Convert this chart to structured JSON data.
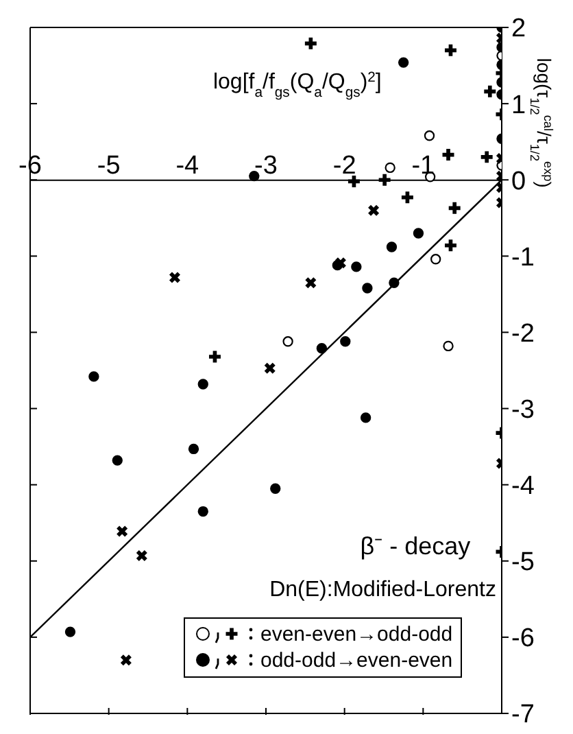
{
  "chart_data": {
    "type": "scatter",
    "title": "β⁻ - decay",
    "subtitle": "Dn(E):Modified-Lorentz",
    "xlabel": "log[f$_{a}$/f$_{gs}$(Q$_{a}$/Q$_{gs}$)$^{2}$]",
    "ylabel": "log(τ$_{1/2}$$^{cal}$/τ$_{1/2}$$^{exp}$)",
    "xlim": [
      -6,
      0
    ],
    "ylim": [
      -7,
      2
    ],
    "xticks": [
      -6,
      -5,
      -4,
      -3,
      -2,
      -1
    ],
    "yticks": [
      -7,
      -6,
      -5,
      -4,
      -3,
      -2,
      -1,
      0,
      1,
      2
    ],
    "legend": "bottom right",
    "series": [
      {
        "color": "#ffffff",
        "marker": "circle",
        "x": [
          -0.92,
          -1.42,
          -0.91,
          -0.84,
          -2.72,
          -0.68,
          0,
          0
        ],
        "values": [
          0.58,
          0.16,
          0.04,
          -1.04,
          -2.12,
          -2.18,
          1.63,
          0.19
        ]
      },
      {
        "name": "even-even→odd-odd",
        "color": "#000000",
        "marker": "cross",
        "x": [
          -2.43,
          -0.65,
          -0.15,
          -0.68,
          -0.19,
          -1.88,
          -1.49,
          -1.2,
          -0.6,
          -0.65,
          -3.65,
          0,
          0,
          0,
          0
        ],
        "values": [
          1.79,
          1.7,
          1.16,
          0.33,
          0.3,
          -0.02,
          0.0,
          -0.23,
          -0.37,
          -0.86,
          -2.32,
          -3.32,
          -4.88,
          1.4,
          0.86
        ]
      },
      {
        "color": "#000000",
        "marker": "circle",
        "x": [
          -1.25,
          -3.15,
          -2.09,
          -1.85,
          -1.4,
          -1.06,
          -1.71,
          -1.37,
          -2.29,
          -1.99,
          -5.19,
          -3.8,
          -4.89,
          -3.92,
          -2.88,
          -3.8,
          -5.49,
          -1.73,
          0,
          0,
          0,
          0,
          0,
          0
        ],
        "values": [
          1.54,
          0.05,
          -1.12,
          -1.14,
          -0.88,
          -0.7,
          -1.42,
          -1.35,
          -2.21,
          -2.12,
          -2.58,
          -2.68,
          -3.68,
          -3.53,
          -4.05,
          -4.35,
          -5.93,
          -3.12,
          2.0,
          1.74,
          1.51,
          1.28,
          1.12,
          0.54
        ]
      },
      {
        "name": "odd-odd→even-even",
        "color": "#000000",
        "marker": "cross",
        "x": [
          -4.16,
          -1.63,
          -2.05,
          -2.43,
          -2.95,
          -4.83,
          -4.58,
          -4.78,
          0,
          0,
          0,
          0,
          0,
          0
        ],
        "values": [
          -1.28,
          -0.4,
          -1.09,
          -1.35,
          -2.47,
          -4.61,
          -4.93,
          -6.3,
          -3.72,
          1.86,
          0.28,
          0.05,
          -0.1,
          -0.3
        ]
      },
      {
        "type": "line",
        "color": "#000000",
        "marker": "none",
        "x": [
          -6,
          0
        ],
        "values": [
          -6,
          0
        ]
      }
    ]
  }
}
